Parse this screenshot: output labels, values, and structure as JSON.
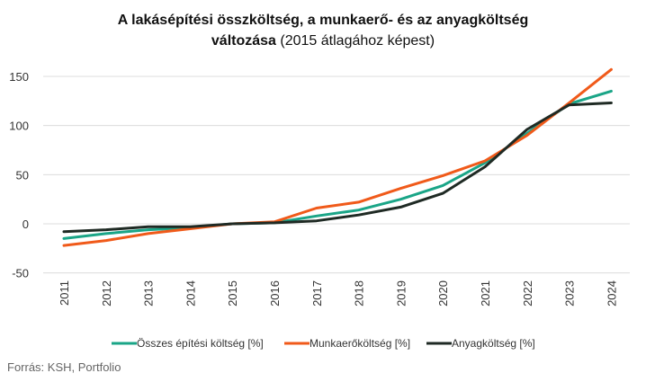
{
  "chart_data": {
    "type": "line",
    "title_bold_line1": "A lakásépítési összköltség, a munkaerő- és az anyagköltség",
    "title_bold_line2": "változása",
    "title_normal_line2": " (2015 átlagához képest)",
    "xlabel": "",
    "ylabel": "",
    "categories": [
      "2011",
      "2012",
      "2013",
      "2014",
      "2015",
      "2016",
      "2017",
      "2018",
      "2019",
      "2020",
      "2021",
      "2022",
      "2023",
      "2024"
    ],
    "ylim": [
      -50,
      160
    ],
    "yticks": [
      -50,
      0,
      50,
      100,
      150
    ],
    "ytick_labels": [
      "-50",
      "0",
      "50",
      "100",
      "150"
    ],
    "grid": "horizontal",
    "legend_position": "bottom",
    "series": [
      {
        "name": "Összes építési költség [%]",
        "color": "#1aa587",
        "values": [
          -15,
          -10,
          -6,
          -4,
          0,
          1,
          8,
          14,
          25,
          39,
          62,
          92,
          122,
          135
        ]
      },
      {
        "name": "Munkaerőköltség [%]",
        "color": "#f05a1a",
        "values": [
          -22,
          -17,
          -10,
          -5,
          0,
          2,
          16,
          22,
          36,
          49,
          64,
          90,
          123,
          157
        ]
      },
      {
        "name": "Anyagköltség [%]",
        "color": "#1f2a24",
        "values": [
          -8,
          -6,
          -3,
          -3,
          0,
          1,
          3,
          9,
          17,
          31,
          58,
          96,
          121,
          123
        ]
      }
    ],
    "source": "Forrás: KSH, Portfolio"
  }
}
